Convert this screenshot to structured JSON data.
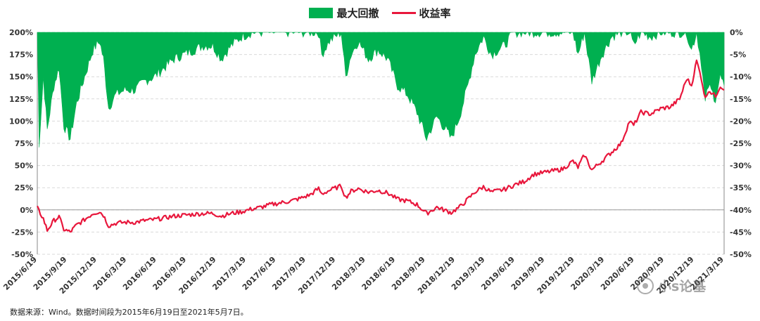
{
  "legend": {
    "drawdown_label": "最大回撤",
    "return_label": "收益率"
  },
  "source_note": "数据来源：Wind。数据时间段为2015年6月19日至2021年5月7日。",
  "watermark": "小s论基",
  "colors": {
    "drawdown": "#00b050",
    "return": "#e8173c",
    "grid": "#d9d9d9",
    "axis_text": "#333333"
  },
  "chart_data": {
    "type": "line+area",
    "x_axis": {
      "tick_labels": [
        "2015/6/19",
        "2015/9/19",
        "2015/12/19",
        "2016/3/19",
        "2016/6/19",
        "2016/9/19",
        "2016/12/19",
        "2017/3/19",
        "2017/6/19",
        "2017/9/19",
        "2017/12/19",
        "2018/3/19",
        "2018/6/19",
        "2018/9/19",
        "2018/12/19",
        "2019/3/19",
        "2019/6/19",
        "2019/9/19",
        "2019/12/19",
        "2020/3/19",
        "2020/6/19",
        "2020/9/19",
        "2020/12/19",
        "2021/3/19"
      ],
      "range": [
        "2015/6/19",
        "2021/5/7"
      ]
    },
    "y_left": {
      "tick_labels": [
        "200%",
        "175%",
        "150%",
        "125%",
        "100%",
        "75%",
        "50%",
        "25%",
        "0%",
        "-25%",
        "-50%"
      ],
      "range": [
        -50,
        200
      ]
    },
    "y_right": {
      "tick_labels": [
        "0%",
        "-5%",
        "-10%",
        "-15%",
        "-20%",
        "-25%",
        "-30%",
        "-35%",
        "-40%",
        "-45%",
        "-50%"
      ],
      "range": [
        -50,
        0
      ]
    },
    "grid": "horizontal dashed",
    "legend_position": "top-center",
    "series": [
      {
        "name": "收益率",
        "axis": "left",
        "type": "line",
        "points": [
          [
            "2015/6/19",
            2
          ],
          [
            "2015/7/8",
            -10
          ],
          [
            "2015/7/20",
            -23
          ],
          [
            "2015/8/10",
            -12
          ],
          [
            "2015/8/26",
            -8
          ],
          [
            "2015/9/10",
            -22
          ],
          [
            "2015/9/30",
            -25
          ],
          [
            "2015/10/20",
            -17
          ],
          [
            "2015/11/10",
            -12
          ],
          [
            "2015/12/10",
            -4
          ],
          [
            "2015/12/31",
            -2
          ],
          [
            "2016/1/12",
            -6
          ],
          [
            "2016/1/28",
            -18
          ],
          [
            "2016/2/20",
            -15
          ],
          [
            "2016/3/19",
            -14
          ],
          [
            "2016/4/20",
            -14
          ],
          [
            "2016/5/20",
            -12
          ],
          [
            "2016/6/19",
            -11
          ],
          [
            "2016/7/20",
            -9
          ],
          [
            "2016/8/20",
            -7
          ],
          [
            "2016/9/19",
            -6
          ],
          [
            "2016/10/20",
            -5
          ],
          [
            "2016/11/20",
            -4
          ],
          [
            "2016/12/19",
            -4
          ],
          [
            "2017/1/15",
            -7
          ],
          [
            "2017/2/15",
            -4
          ],
          [
            "2017/3/19",
            -2
          ],
          [
            "2017/4/20",
            1
          ],
          [
            "2017/5/20",
            3
          ],
          [
            "2017/6/19",
            6
          ],
          [
            "2017/7/20",
            8
          ],
          [
            "2017/8/20",
            10
          ],
          [
            "2017/9/19",
            13
          ],
          [
            "2017/10/20",
            17
          ],
          [
            "2017/11/15",
            24
          ],
          [
            "2017/11/25",
            18
          ],
          [
            "2017/12/19",
            22
          ],
          [
            "2018/1/25",
            27
          ],
          [
            "2018/2/8",
            14
          ],
          [
            "2018/2/25",
            21
          ],
          [
            "2018/3/19",
            24
          ],
          [
            "2018/4/20",
            20
          ],
          [
            "2018/5/20",
            22
          ],
          [
            "2018/6/19",
            19
          ],
          [
            "2018/7/20",
            12
          ],
          [
            "2018/8/20",
            10
          ],
          [
            "2018/9/19",
            6
          ],
          [
            "2018/10/19",
            -4
          ],
          [
            "2018/11/20",
            3
          ],
          [
            "2018/12/19",
            -1
          ],
          [
            "2019/1/4",
            -3
          ],
          [
            "2019/1/30",
            3
          ],
          [
            "2019/2/25",
            12
          ],
          [
            "2019/3/19",
            20
          ],
          [
            "2019/4/15",
            26
          ],
          [
            "2019/5/10",
            20
          ],
          [
            "2019/6/19",
            23
          ],
          [
            "2019/7/20",
            28
          ],
          [
            "2019/8/20",
            32
          ],
          [
            "2019/9/19",
            40
          ],
          [
            "2019/10/20",
            42
          ],
          [
            "2019/11/20",
            44
          ],
          [
            "2019/12/19",
            46
          ],
          [
            "2020/1/20",
            55
          ],
          [
            "2020/2/5",
            48
          ],
          [
            "2020/2/25",
            62
          ],
          [
            "2020/3/19",
            45
          ],
          [
            "2020/4/20",
            55
          ],
          [
            "2020/5/20",
            65
          ],
          [
            "2020/6/19",
            75
          ],
          [
            "2020/7/15",
            100
          ],
          [
            "2020/7/28",
            95
          ],
          [
            "2020/8/20",
            110
          ],
          [
            "2020/9/19",
            108
          ],
          [
            "2020/10/20",
            114
          ],
          [
            "2020/11/20",
            116
          ],
          [
            "2020/12/19",
            125
          ],
          [
            "2021/1/10",
            148
          ],
          [
            "2021/1/25",
            140
          ],
          [
            "2021/2/10",
            168
          ],
          [
            "2021/2/25",
            148
          ],
          [
            "2021/3/9",
            125
          ],
          [
            "2021/3/19",
            135
          ],
          [
            "2021/4/10",
            128
          ],
          [
            "2021/4/25",
            140
          ],
          [
            "2021/5/7",
            135
          ]
        ]
      },
      {
        "name": "最大回撤",
        "axis": "right",
        "type": "area",
        "points": [
          [
            "2015/6/19",
            0
          ],
          [
            "2015/6/25",
            -25
          ],
          [
            "2015/7/8",
            -10
          ],
          [
            "2015/7/20",
            -22
          ],
          [
            "2015/8/10",
            -12
          ],
          [
            "2015/8/26",
            -8
          ],
          [
            "2015/9/10",
            -21
          ],
          [
            "2015/9/30",
            -24
          ],
          [
            "2015/10/20",
            -16
          ],
          [
            "2015/11/10",
            -11
          ],
          [
            "2015/12/10",
            -4
          ],
          [
            "2015/12/31",
            -2
          ],
          [
            "2016/1/12",
            -6
          ],
          [
            "2016/1/28",
            -17
          ],
          [
            "2016/2/20",
            -14
          ],
          [
            "2016/3/19",
            -13
          ],
          [
            "2016/4/20",
            -13
          ],
          [
            "2016/5/20",
            -11
          ],
          [
            "2016/6/19",
            -10
          ],
          [
            "2016/7/20",
            -8
          ],
          [
            "2016/8/20",
            -6
          ],
          [
            "2016/9/19",
            -5
          ],
          [
            "2016/10/20",
            -4
          ],
          [
            "2016/11/20",
            -3
          ],
          [
            "2016/12/19",
            -3
          ],
          [
            "2017/1/15",
            -6
          ],
          [
            "2017/2/15",
            -3
          ],
          [
            "2017/3/19",
            -1
          ],
          [
            "2017/4/20",
            0
          ],
          [
            "2017/5/20",
            0
          ],
          [
            "2017/6/19",
            0
          ],
          [
            "2017/7/20",
            0
          ],
          [
            "2017/8/20",
            0
          ],
          [
            "2017/9/19",
            0
          ],
          [
            "2017/10/20",
            0
          ],
          [
            "2017/11/15",
            0
          ],
          [
            "2017/11/25",
            -5
          ],
          [
            "2017/12/19",
            -2
          ],
          [
            "2018/1/25",
            0
          ],
          [
            "2018/2/8",
            -10
          ],
          [
            "2018/2/25",
            -5
          ],
          [
            "2018/3/19",
            -2
          ],
          [
            "2018/4/20",
            -6
          ],
          [
            "2018/5/20",
            -4
          ],
          [
            "2018/6/19",
            -6
          ],
          [
            "2018/7/20",
            -12
          ],
          [
            "2018/8/20",
            -14
          ],
          [
            "2018/9/19",
            -18
          ],
          [
            "2018/10/19",
            -24
          ],
          [
            "2018/11/20",
            -19
          ],
          [
            "2018/12/19",
            -22
          ],
          [
            "2019/1/4",
            -24
          ],
          [
            "2019/1/30",
            -19
          ],
          [
            "2019/2/25",
            -12
          ],
          [
            "2019/3/19",
            -5
          ],
          [
            "2019/4/15",
            -1
          ],
          [
            "2019/5/10",
            -5
          ],
          [
            "2019/6/19",
            -3
          ],
          [
            "2019/7/20",
            0
          ],
          [
            "2019/8/20",
            0
          ],
          [
            "2019/9/19",
            0
          ],
          [
            "2019/10/20",
            0
          ],
          [
            "2019/11/20",
            0
          ],
          [
            "2019/12/19",
            0
          ],
          [
            "2020/1/20",
            0
          ],
          [
            "2020/2/5",
            -5
          ],
          [
            "2020/2/25",
            0
          ],
          [
            "2020/3/19",
            -11
          ],
          [
            "2020/4/20",
            -5
          ],
          [
            "2020/5/20",
            -1
          ],
          [
            "2020/6/19",
            0
          ],
          [
            "2020/7/15",
            0
          ],
          [
            "2020/7/28",
            -3
          ],
          [
            "2020/8/20",
            0
          ],
          [
            "2020/9/19",
            -1
          ],
          [
            "2020/10/20",
            0
          ],
          [
            "2020/11/20",
            0
          ],
          [
            "2020/12/19",
            0
          ],
          [
            "2021/1/10",
            0
          ],
          [
            "2021/1/25",
            -4
          ],
          [
            "2021/2/10",
            0
          ],
          [
            "2021/2/25",
            -7
          ],
          [
            "2021/3/9",
            -16
          ],
          [
            "2021/3/19",
            -12
          ],
          [
            "2021/4/10",
            -15
          ],
          [
            "2021/4/25",
            -10
          ],
          [
            "2021/5/7",
            -12
          ]
        ]
      }
    ]
  }
}
